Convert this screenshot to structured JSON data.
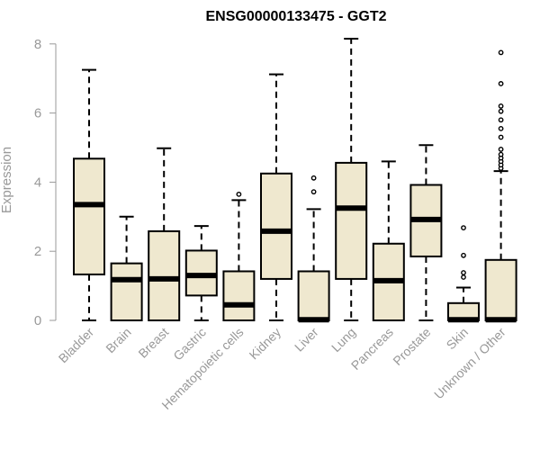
{
  "chart_data": {
    "type": "boxplot",
    "title": "ENSG00000133475 - GGT2",
    "ylabel": "Expression",
    "xlabel": "",
    "ylim": [
      0,
      8.2
    ],
    "yticks": [
      0,
      2,
      4,
      6,
      8
    ],
    "box_fill": "#efe8cf",
    "categories": [
      "Bladder",
      "Brain",
      "Breast",
      "Gastric",
      "Hematopoietic cells",
      "Kidney",
      "Liver",
      "Lung",
      "Pancreas",
      "Prostate",
      "Skin",
      "Unknown / Other"
    ],
    "boxes": [
      {
        "min": 0,
        "q1": 1.33,
        "median": 3.35,
        "q3": 4.68,
        "max": 7.25,
        "outliers": []
      },
      {
        "min": 0,
        "q1": 0,
        "median": 1.18,
        "q3": 1.65,
        "max": 3.0,
        "outliers": []
      },
      {
        "min": 0,
        "q1": 0,
        "median": 1.2,
        "q3": 2.58,
        "max": 4.98,
        "outliers": []
      },
      {
        "min": 0,
        "q1": 0.72,
        "median": 1.3,
        "q3": 2.02,
        "max": 2.73,
        "outliers": []
      },
      {
        "min": 0,
        "q1": 0,
        "median": 0.45,
        "q3": 1.42,
        "max": 3.48,
        "outliers": [
          3.65
        ]
      },
      {
        "min": 0,
        "q1": 1.2,
        "median": 2.58,
        "q3": 4.25,
        "max": 7.12,
        "outliers": []
      },
      {
        "min": 0,
        "q1": 0,
        "median": 0.02,
        "q3": 1.42,
        "max": 3.22,
        "outliers": [
          3.72,
          4.12
        ]
      },
      {
        "min": 0,
        "q1": 1.2,
        "median": 3.25,
        "q3": 4.56,
        "max": 8.15,
        "outliers": []
      },
      {
        "min": 0,
        "q1": 0,
        "median": 1.15,
        "q3": 2.22,
        "max": 4.6,
        "outliers": []
      },
      {
        "min": 0,
        "q1": 1.85,
        "median": 2.92,
        "q3": 3.92,
        "max": 5.07,
        "outliers": []
      },
      {
        "min": 0,
        "q1": 0,
        "median": 0.02,
        "q3": 0.5,
        "max": 0.95,
        "outliers": [
          1.25,
          1.38,
          1.88,
          2.68
        ]
      },
      {
        "min": 0,
        "q1": 0,
        "median": 0.02,
        "q3": 1.75,
        "max": 4.32,
        "outliers": [
          4.4,
          4.5,
          4.6,
          4.7,
          4.8,
          4.95,
          5.3,
          5.55,
          5.8,
          6.05,
          6.2,
          6.85,
          7.75
        ]
      }
    ]
  }
}
